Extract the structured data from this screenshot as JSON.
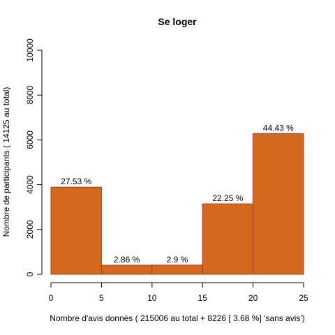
{
  "chart_data": {
    "type": "bar",
    "title": "Se loger",
    "xlabel": "Nombre d'avis donnés ( 215006  au total +  8226 [ 3.68 %]  'sans avis')",
    "ylabel": "Nombre de participants ( 14125  au total)",
    "bins": [
      {
        "x0": 0,
        "x1": 5,
        "value": 3889,
        "label": "27.53 %"
      },
      {
        "x0": 5,
        "x1": 10,
        "value": 404,
        "label": "2.86 %"
      },
      {
        "x0": 10,
        "x1": 15,
        "value": 410,
        "label": "2.9 %"
      },
      {
        "x0": 15,
        "x1": 20,
        "value": 3143,
        "label": "22.25 %"
      },
      {
        "x0": 20,
        "x1": 25,
        "value": 6276,
        "label": "44.43 %"
      }
    ],
    "xlim": [
      0,
      25
    ],
    "ylim": [
      0,
      10000
    ],
    "xticks": [
      0,
      5,
      10,
      15,
      20,
      25
    ],
    "yticks": [
      0,
      2000,
      4000,
      6000,
      8000,
      10000
    ],
    "bar_color": "#d2691e",
    "bar_border_color": "#b5381c",
    "grid": false,
    "legend": "none"
  }
}
